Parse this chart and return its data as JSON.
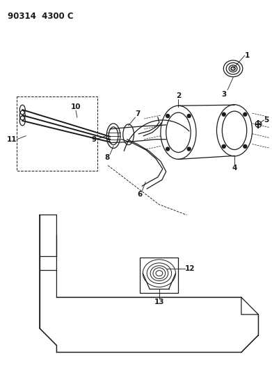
{
  "title": "90314  4300 C",
  "bg_color": "#ffffff",
  "line_color": "#1a1a1a",
  "title_fontsize": 8.5,
  "label_fontsize": 7.5,
  "figsize": [
    3.91,
    5.33
  ],
  "dpi": 100
}
